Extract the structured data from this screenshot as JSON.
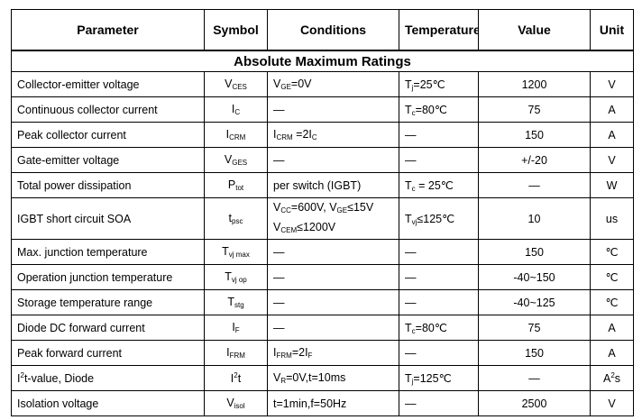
{
  "header": {
    "parameter": "Parameter",
    "symbol": "Symbol",
    "conditions": "Conditions",
    "temperature": "Temperature",
    "value": "Value",
    "unit": "Unit"
  },
  "section_title": "Absolute Maximum Ratings",
  "rows": [
    {
      "parameter": "Collector-emitter voltage",
      "symbol_main": "V",
      "symbol_sub": "CES",
      "cond": [
        {
          "t": "V"
        },
        {
          "s": "GE"
        },
        {
          "t": "=0V"
        }
      ],
      "temp": [
        {
          "t": "T"
        },
        {
          "s": "j"
        },
        {
          "t": "=25℃"
        }
      ],
      "value": "1200",
      "unit": "V"
    },
    {
      "parameter": "Continuous collector current",
      "symbol_main": "I",
      "symbol_sub": "C",
      "cond": [
        {
          "t": "—"
        }
      ],
      "temp": [
        {
          "t": "T"
        },
        {
          "s": "c"
        },
        {
          "t": "=80℃"
        }
      ],
      "value": "75",
      "unit": "A"
    },
    {
      "parameter": "Peak collector current",
      "symbol_main": "I",
      "symbol_sub": "CRM",
      "cond": [
        {
          "t": "I"
        },
        {
          "s": "CRM"
        },
        {
          "t": " =2I"
        },
        {
          "s": "C"
        }
      ],
      "temp": [
        {
          "t": "—"
        }
      ],
      "value": "150",
      "unit": "A"
    },
    {
      "parameter": "Gate-emitter voltage",
      "symbol_main": "V",
      "symbol_sub": "GES",
      "cond": [
        {
          "t": "—"
        }
      ],
      "temp": [
        {
          "t": "—"
        }
      ],
      "value": "+/-20",
      "unit": "V"
    },
    {
      "parameter": "Total power dissipation",
      "symbol_main": "P",
      "symbol_sub": "tot",
      "cond": [
        {
          "t": "per switch (IGBT)"
        }
      ],
      "temp": [
        {
          "t": "T"
        },
        {
          "s": "c"
        },
        {
          "t": " = 25℃"
        }
      ],
      "value": "—",
      "unit": "W"
    },
    {
      "parameter": "IGBT short circuit SOA",
      "symbol_main": "t",
      "symbol_sub": "psc",
      "cond_lines": [
        [
          {
            "t": "V"
          },
          {
            "s": "CC"
          },
          {
            "t": "=600V, V"
          },
          {
            "s": "GE"
          },
          {
            "t": "≤15V"
          }
        ],
        [
          {
            "t": "V"
          },
          {
            "s": "CEM"
          },
          {
            "t": "≤1200V"
          }
        ]
      ],
      "temp": [
        {
          "t": "T"
        },
        {
          "s": "vj"
        },
        {
          "t": "≤125℃"
        }
      ],
      "value": "10",
      "unit": "us"
    },
    {
      "parameter": "Max. junction temperature",
      "symbol_main": "T",
      "symbol_sub": "vj max",
      "cond": [
        {
          "t": "—"
        }
      ],
      "temp": [
        {
          "t": "—"
        }
      ],
      "value": "150",
      "unit": "℃"
    },
    {
      "parameter": "Operation junction temperature",
      "symbol_main": "T",
      "symbol_sub": "vj op",
      "cond": [
        {
          "t": "—"
        }
      ],
      "temp": [
        {
          "t": "—"
        }
      ],
      "value": "-40~150",
      "unit": "℃"
    },
    {
      "parameter": "Storage temperature range",
      "symbol_main": "T",
      "symbol_sub": "stg",
      "cond": [
        {
          "t": "—"
        }
      ],
      "temp": [
        {
          "t": "—"
        }
      ],
      "value": "-40~125",
      "unit": "℃"
    },
    {
      "parameter": "Diode DC forward current",
      "symbol_main": "I",
      "symbol_sub": "F",
      "cond": [
        {
          "t": "—"
        }
      ],
      "temp": [
        {
          "t": "T"
        },
        {
          "s": "c"
        },
        {
          "t": "=80℃"
        }
      ],
      "value": "75",
      "unit": "A"
    },
    {
      "parameter": "Peak forward current",
      "symbol_main": "I",
      "symbol_sub": "FRM",
      "cond": [
        {
          "t": "I"
        },
        {
          "s": "FRM"
        },
        {
          "t": "=2I"
        },
        {
          "s": "F"
        }
      ],
      "temp": [
        {
          "t": "—"
        }
      ],
      "value": "150",
      "unit": "A"
    },
    {
      "parameter_parts": [
        {
          "t": "I"
        },
        {
          "p": "2"
        },
        {
          "t": "t-value, Diode"
        }
      ],
      "symbol_main": "I",
      "symbol_sup": "2",
      "symbol_after": "t",
      "cond": [
        {
          "t": "V"
        },
        {
          "s": "R"
        },
        {
          "t": "=0V,t=10ms"
        }
      ],
      "temp": [
        {
          "t": "T"
        },
        {
          "s": "j"
        },
        {
          "t": "=125℃"
        }
      ],
      "value": "—",
      "unit_parts": [
        {
          "t": "A"
        },
        {
          "p": "2"
        },
        {
          "t": "s"
        }
      ]
    },
    {
      "parameter": "Isolation voltage",
      "symbol_main": "V",
      "symbol_sub": "isol",
      "cond": [
        {
          "t": "t=1min,f=50Hz"
        }
      ],
      "temp": [
        {
          "t": "—"
        }
      ],
      "value": "2500",
      "unit": "V"
    }
  ]
}
